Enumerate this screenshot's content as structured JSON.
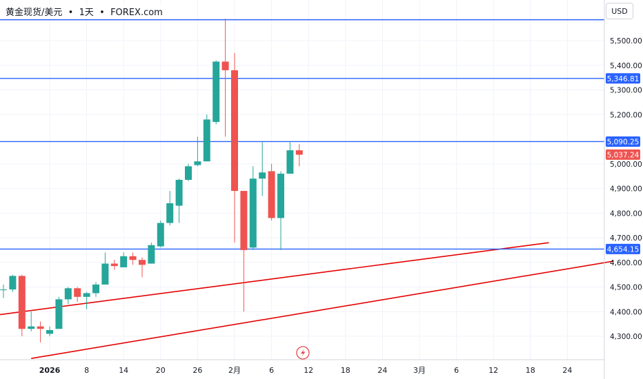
{
  "header": {
    "symbol": "黄金现货/美元",
    "interval": "1天",
    "source": "FOREX.com",
    "separator": "•"
  },
  "axis_currency": "USD",
  "colors": {
    "up": "#26a69a",
    "down": "#ef5350",
    "hline": "#2962ff",
    "trendline": "#e50000",
    "grid": "#f0f3fa",
    "text": "#131722",
    "current_price_label": "#ef5350",
    "hline_label": "#2962ff"
  },
  "lightning_icon": "lightning-icon",
  "chart_data": {
    "type": "candlestick",
    "x_tick_labels": [
      "2026",
      "8",
      "14",
      "20",
      "26",
      "2月",
      "6",
      "12",
      "18",
      "24",
      "3月",
      "6",
      "12",
      "18",
      "24"
    ],
    "y_tick_labels": [
      "5,500.00",
      "5,400.00",
      "5,300.00",
      "5,200.00",
      "5,000.00",
      "4,900.00",
      "4,800.00",
      "4,700.00",
      "4,600.00",
      "4,500.00",
      "4,400.00",
      "4,300.00"
    ],
    "y_range": [
      4220,
      5660
    ],
    "candles": [
      {
        "o": 4488,
        "h": 4510,
        "l": 4455,
        "c": 4490
      },
      {
        "o": 4490,
        "h": 4550,
        "l": 4480,
        "c": 4545
      },
      {
        "o": 4545,
        "h": 4550,
        "l": 4300,
        "c": 4330
      },
      {
        "o": 4330,
        "h": 4400,
        "l": 4320,
        "c": 4340
      },
      {
        "o": 4340,
        "h": 4360,
        "l": 4275,
        "c": 4330
      },
      {
        "o": 4310,
        "h": 4340,
        "l": 4300,
        "c": 4325
      },
      {
        "o": 4330,
        "h": 4460,
        "l": 4330,
        "c": 4450
      },
      {
        "o": 4450,
        "h": 4500,
        "l": 4430,
        "c": 4495
      },
      {
        "o": 4495,
        "h": 4500,
        "l": 4440,
        "c": 4460
      },
      {
        "o": 4460,
        "h": 4480,
        "l": 4410,
        "c": 4475
      },
      {
        "o": 4475,
        "h": 4520,
        "l": 4460,
        "c": 4510
      },
      {
        "o": 4510,
        "h": 4640,
        "l": 4510,
        "c": 4595
      },
      {
        "o": 4595,
        "h": 4610,
        "l": 4570,
        "c": 4585
      },
      {
        "o": 4580,
        "h": 4640,
        "l": 4580,
        "c": 4625
      },
      {
        "o": 4625,
        "h": 4640,
        "l": 4590,
        "c": 4610
      },
      {
        "o": 4610,
        "h": 4620,
        "l": 4540,
        "c": 4590
      },
      {
        "o": 4595,
        "h": 4680,
        "l": 4595,
        "c": 4670
      },
      {
        "o": 4665,
        "h": 4770,
        "l": 4660,
        "c": 4760
      },
      {
        "o": 4760,
        "h": 4890,
        "l": 4750,
        "c": 4840
      },
      {
        "o": 4830,
        "h": 4940,
        "l": 4760,
        "c": 4935
      },
      {
        "o": 4935,
        "h": 5000,
        "l": 4930,
        "c": 4990
      },
      {
        "o": 4995,
        "h": 5110,
        "l": 4990,
        "c": 5010
      },
      {
        "o": 5010,
        "h": 5200,
        "l": 5010,
        "c": 5180
      },
      {
        "o": 5170,
        "h": 5420,
        "l": 5160,
        "c": 5415
      },
      {
        "o": 5415,
        "h": 5590,
        "l": 5110,
        "c": 5380
      },
      {
        "o": 5380,
        "h": 5450,
        "l": 4680,
        "c": 4890
      },
      {
        "o": 4890,
        "h": 4890,
        "l": 4400,
        "c": 4650
      },
      {
        "o": 4660,
        "h": 4990,
        "l": 4650,
        "c": 4940
      },
      {
        "o": 4940,
        "h": 5090,
        "l": 4870,
        "c": 4965
      },
      {
        "o": 4970,
        "h": 5000,
        "l": 4770,
        "c": 4780
      },
      {
        "o": 4780,
        "h": 4970,
        "l": 4650,
        "c": 4960
      },
      {
        "o": 4960,
        "h": 5090,
        "l": 4960,
        "c": 5055
      },
      {
        "o": 5055,
        "h": 5080,
        "l": 4990,
        "c": 5037
      }
    ],
    "horizontal_lines": [
      {
        "price": 5585,
        "label": ""
      },
      {
        "price": 5346.81,
        "label": "5,346.81"
      },
      {
        "price": 5090.25,
        "label": "5,090.25"
      },
      {
        "price": 4654.15,
        "label": "4,654.15"
      }
    ],
    "current_price": {
      "price": 5037.24,
      "label": "5,037.24"
    },
    "trendlines": [
      {
        "from": {
          "bar": -1,
          "price": 4385
        },
        "to": {
          "bar": 59,
          "price": 4680
        }
      },
      {
        "from": {
          "bar": 3,
          "price": 4210
        },
        "to": {
          "bar": 66,
          "price": 4605
        }
      }
    ]
  }
}
